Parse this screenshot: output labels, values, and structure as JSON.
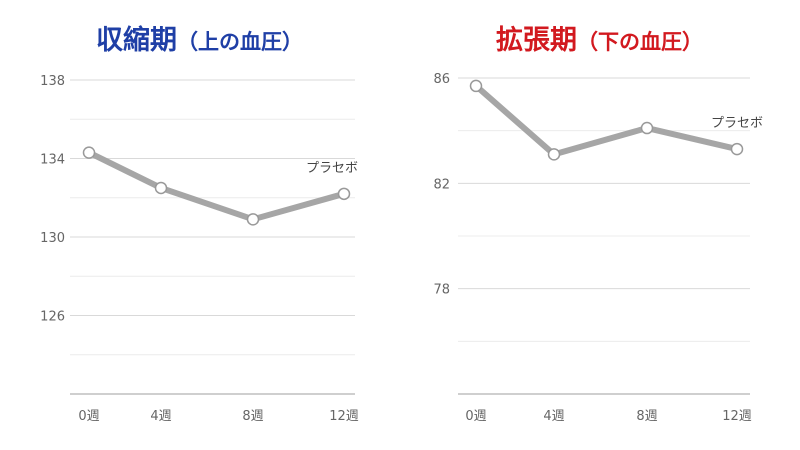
{
  "chart_data": [
    {
      "type": "line",
      "title": "収縮期",
      "subtitle": "（上の血圧）",
      "categories": [
        "0週",
        "4週",
        "8週",
        "12週"
      ],
      "series": [
        {
          "name": "プラセボ",
          "values": [
            134.3,
            132.5,
            130.9,
            132.2
          ]
        }
      ],
      "yticks": [
        "138",
        "134",
        "130",
        "126"
      ],
      "ylim": [
        122,
        138
      ],
      "ytick_values": [
        138,
        134,
        130,
        126
      ],
      "grid": true
    },
    {
      "type": "line",
      "title": "拡張期",
      "subtitle": "（下の血圧）",
      "categories": [
        "0週",
        "4週",
        "8週",
        "12週"
      ],
      "series": [
        {
          "name": "プラセボ",
          "values": [
            85.7,
            83.1,
            84.1,
            83.3
          ]
        }
      ],
      "yticks": [
        "86",
        "82",
        "78"
      ],
      "ylim": [
        74,
        86
      ],
      "ytick_values": [
        86,
        82,
        78
      ],
      "grid": true
    }
  ]
}
